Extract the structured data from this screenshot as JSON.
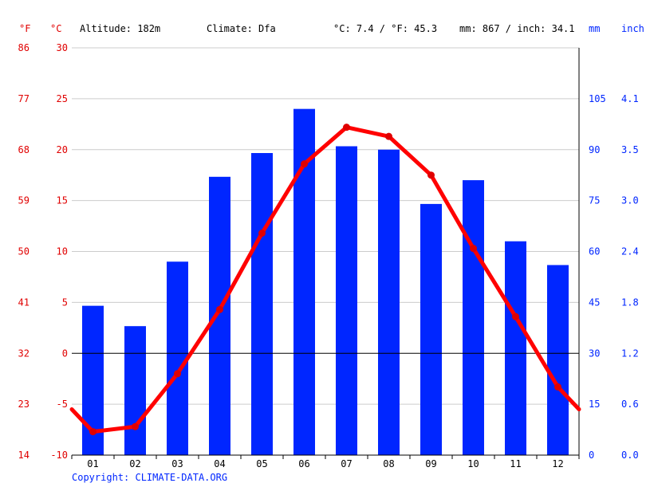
{
  "header": {
    "unit_f": "°F",
    "unit_c": "°C",
    "altitude": "Altitude: 182m",
    "climate": "Climate: Dfa",
    "temp_avg": "°C: 7.4 / °F: 45.3",
    "precip_total": "mm: 867 / inch: 34.1",
    "unit_mm": "mm",
    "unit_inch": "inch"
  },
  "copyright": "Copyright: CLIMATE-DATA.ORG",
  "colors": {
    "temperature": "#ff0000",
    "temperature_axis": "#e00000",
    "precipitation": "#0026ff",
    "grid": "#cccccc",
    "zero_line": "#000000"
  },
  "chart_data": {
    "type": "bar",
    "categories": [
      "01",
      "02",
      "03",
      "04",
      "05",
      "06",
      "07",
      "08",
      "09",
      "10",
      "11",
      "12"
    ],
    "series": [
      {
        "type": "bar",
        "axis": "right",
        "values": [
          44,
          38,
          57,
          82,
          89,
          102,
          91,
          90,
          74,
          81,
          63,
          56
        ]
      },
      {
        "type": "line",
        "axis": "left",
        "values": [
          -7.7,
          -7.2,
          -2.0,
          4.3,
          11.8,
          18.6,
          22.2,
          21.3,
          17.5,
          10.3,
          3.6,
          -3.3
        ],
        "start": -5.5,
        "end": -5.5
      }
    ],
    "y_left_celsius": {
      "ylim": [
        -10,
        30
      ],
      "ticks": [
        "-10",
        "-5",
        "0",
        "5",
        "10",
        "15",
        "20",
        "25",
        "30"
      ]
    },
    "y_left_fahrenheit": {
      "ticks": [
        "14",
        "23",
        "32",
        "41",
        "50",
        "59",
        "68",
        "77",
        "86"
      ]
    },
    "y_right_mm": {
      "ylim": [
        0,
        120
      ],
      "ticks": [
        "0",
        "15",
        "30",
        "45",
        "60",
        "75",
        "90",
        "105"
      ]
    },
    "y_right_inch": {
      "ticks": [
        "0.0",
        "0.6",
        "1.2",
        "1.8",
        "2.4",
        "3.0",
        "3.5",
        "4.1"
      ]
    },
    "grid": true,
    "zero_line": true
  }
}
